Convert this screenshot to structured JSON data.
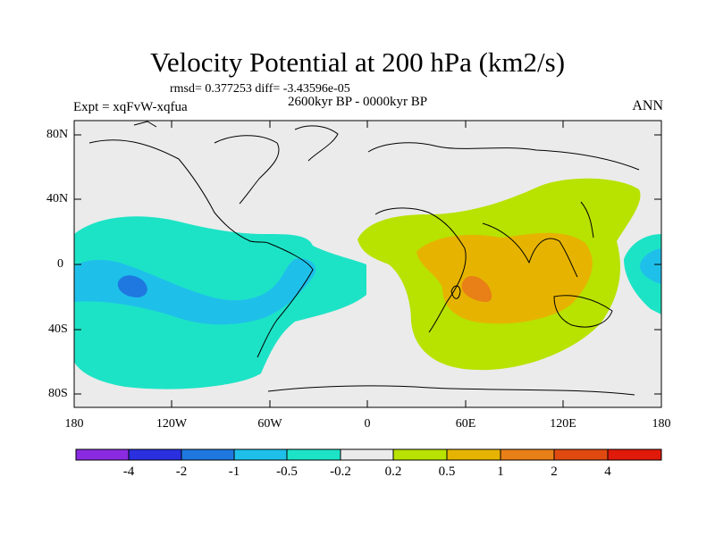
{
  "title": "Velocity Potential at 200 hPa (km2/s)",
  "stats": "rmsd= 0.377253 diff= -3.43596e-05",
  "experiment": "Expt = xqFvW-xqfua",
  "period": "2600kyr BP - 0000kyr BP",
  "season": "ANN",
  "lat_labels": [
    "80N",
    "40N",
    "0",
    "40S",
    "80S"
  ],
  "lon_labels": [
    "180",
    "120W",
    "60W",
    "0",
    "60E",
    "120E",
    "180"
  ],
  "colorbar": {
    "labels": [
      "-4",
      "-2",
      "-1",
      "-0.5",
      "-0.2",
      "0.2",
      "0.5",
      "1",
      "2",
      "4"
    ],
    "colors": [
      "#8a2be2",
      "#2a2fe0",
      "#1f78e0",
      "#1ec0ea",
      "#1de3c6",
      "#ebebeb",
      "#b8e200",
      "#e6b400",
      "#e87f17",
      "#e04a10",
      "#e01a0a"
    ]
  }
}
